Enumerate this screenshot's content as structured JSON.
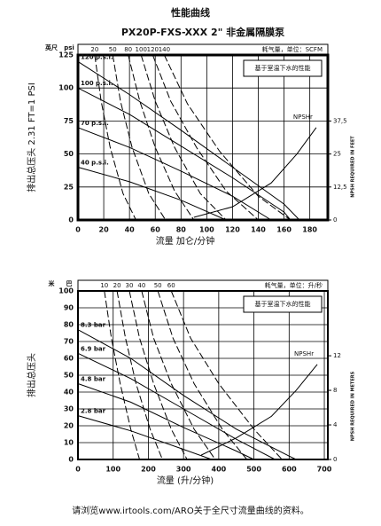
{
  "page_title": "性能曲线",
  "footer": "请浏览www.irtools.com/ARO关于全尺寸流量曲线的资料。",
  "chart_data": [
    {
      "type": "line",
      "title": "PX20P-FXS-XXX 2\" 非金属隔膜泵",
      "x_label": "流量 加仑/分钟",
      "y_label": "排出总压头 2.31 FT=1 PSI",
      "y_units": [
        "英尺",
        "psi"
      ],
      "y2_label": "NPSH REQUIRED IN FEET",
      "air_label": "耗气量，单位：SCFM",
      "annotation": "基于室温下水的性能",
      "xlim": [
        0,
        194
      ],
      "xticks": [
        0,
        20,
        40,
        60,
        80,
        100,
        120,
        140,
        160,
        180
      ],
      "ylim": [
        0,
        125
      ],
      "yticks": [
        0,
        25,
        50,
        75,
        100,
        125
      ],
      "y2lim": [
        0,
        62.5
      ],
      "y2ticks": [
        0,
        {
          "value": 12.5,
          "label": "12,5"
        },
        25,
        {
          "value": 37.5,
          "label": "37,5"
        }
      ],
      "grid": true,
      "series": [
        {
          "name": "120 p.s.i.",
          "style": "solid",
          "x": [
            0,
            40,
            80,
            120,
            160,
            172
          ],
          "values": [
            120,
            95,
            68,
            40,
            12,
            0
          ]
        },
        {
          "name": "100 p.s.i.",
          "style": "solid",
          "x": [
            0,
            40,
            80,
            120,
            160,
            165
          ],
          "values": [
            100,
            80,
            56,
            32,
            6,
            0
          ]
        },
        {
          "name": "70 p.s.i.",
          "style": "solid",
          "x": [
            0,
            40,
            80,
            120,
            150
          ],
          "values": [
            70,
            55,
            37,
            18,
            0
          ]
        },
        {
          "name": "40 p.s.i.",
          "style": "solid",
          "x": [
            0,
            40,
            80,
            115
          ],
          "values": [
            40,
            29,
            15,
            0
          ]
        },
        {
          "name": "20",
          "style": "dashed",
          "x": [
            13,
            18,
            25,
            35,
            45
          ],
          "values": [
            125,
            90,
            55,
            20,
            0
          ]
        },
        {
          "name": "50",
          "style": "dashed",
          "x": [
            27,
            33,
            42,
            55,
            68
          ],
          "values": [
            125,
            90,
            55,
            20,
            0
          ]
        },
        {
          "name": "80",
          "style": "dashed",
          "x": [
            39,
            48,
            60,
            75,
            90
          ],
          "values": [
            125,
            90,
            55,
            22,
            0
          ]
        },
        {
          "name": "100",
          "style": "dashed",
          "x": [
            49,
            60,
            75,
            95,
            115
          ],
          "values": [
            125,
            90,
            55,
            20,
            0
          ]
        },
        {
          "name": "120",
          "style": "dashed",
          "x": [
            58,
            72,
            92,
            115,
            140
          ],
          "values": [
            125,
            90,
            55,
            22,
            0
          ]
        },
        {
          "name": "140",
          "style": "dashed",
          "x": [
            67,
            85,
            110,
            140,
            165
          ],
          "values": [
            125,
            88,
            52,
            18,
            0
          ]
        },
        {
          "name": "NPSHr",
          "style": "solid",
          "axis": "y2",
          "x": [
            90,
            120,
            150,
            170,
            185
          ],
          "values": [
            1,
            5,
            14,
            25,
            35
          ]
        }
      ]
    },
    {
      "type": "line",
      "x_label": "流量 (升/分钟)",
      "y_label": "排出总压头",
      "y_units": [
        "米",
        "巴"
      ],
      "y2_label": "NPSH REQUIRED IN METERS",
      "air_label": "耗气量，单位：升/秒",
      "annotation": "基于室温下水的性能",
      "xlim": [
        0,
        710
      ],
      "xticks": [
        0,
        100,
        200,
        300,
        400,
        500,
        600,
        700
      ],
      "ylim": [
        0,
        100
      ],
      "yticks": [
        0,
        10,
        20,
        30,
        40,
        50,
        60,
        70,
        80,
        90,
        100
      ],
      "y2lim": [
        0,
        19.5
      ],
      "y2ticks": [
        0,
        4,
        8,
        12
      ],
      "grid": true,
      "series": [
        {
          "name": "8.3 bar",
          "style": "solid",
          "x": [
            0,
            150,
            300,
            450,
            600,
            620
          ],
          "values": [
            77,
            60,
            38,
            18,
            2,
            0
          ]
        },
        {
          "name": "6.9 bar",
          "style": "solid",
          "x": [
            0,
            150,
            300,
            450,
            560
          ],
          "values": [
            63,
            48,
            30,
            12,
            0
          ]
        },
        {
          "name": "4.8 bar",
          "style": "solid",
          "x": [
            0,
            150,
            300,
            450,
            500
          ],
          "values": [
            45,
            34,
            19,
            5,
            0
          ]
        },
        {
          "name": "2.8 bar",
          "style": "solid",
          "x": [
            0,
            150,
            300,
            380
          ],
          "values": [
            26,
            17,
            6,
            0
          ]
        },
        {
          "name": "10",
          "style": "dashed",
          "x": [
            75,
            95,
            120,
            150,
            175
          ],
          "values": [
            100,
            72,
            45,
            18,
            0
          ]
        },
        {
          "name": "20",
          "style": "dashed",
          "x": [
            111,
            135,
            165,
            205,
            240
          ],
          "values": [
            100,
            72,
            45,
            18,
            0
          ]
        },
        {
          "name": "30",
          "style": "dashed",
          "x": [
            146,
            175,
            215,
            265,
            310
          ],
          "values": [
            100,
            72,
            45,
            18,
            0
          ]
        },
        {
          "name": "40",
          "style": "dashed",
          "x": [
            181,
            215,
            265,
            330,
            390
          ],
          "values": [
            100,
            72,
            45,
            18,
            0
          ]
        },
        {
          "name": "50",
          "style": "dashed",
          "x": [
            227,
            270,
            330,
            410,
            480
          ],
          "values": [
            100,
            72,
            45,
            18,
            0
          ]
        },
        {
          "name": "60",
          "style": "dashed",
          "x": [
            265,
            320,
            400,
            500,
            580
          ],
          "values": [
            100,
            72,
            45,
            18,
            0
          ]
        },
        {
          "name": "NPSHr",
          "style": "solid",
          "axis": "y2",
          "x": [
            350,
            450,
            550,
            620,
            680
          ],
          "values": [
            0.5,
            2.5,
            5,
            8,
            11
          ]
        }
      ]
    }
  ]
}
